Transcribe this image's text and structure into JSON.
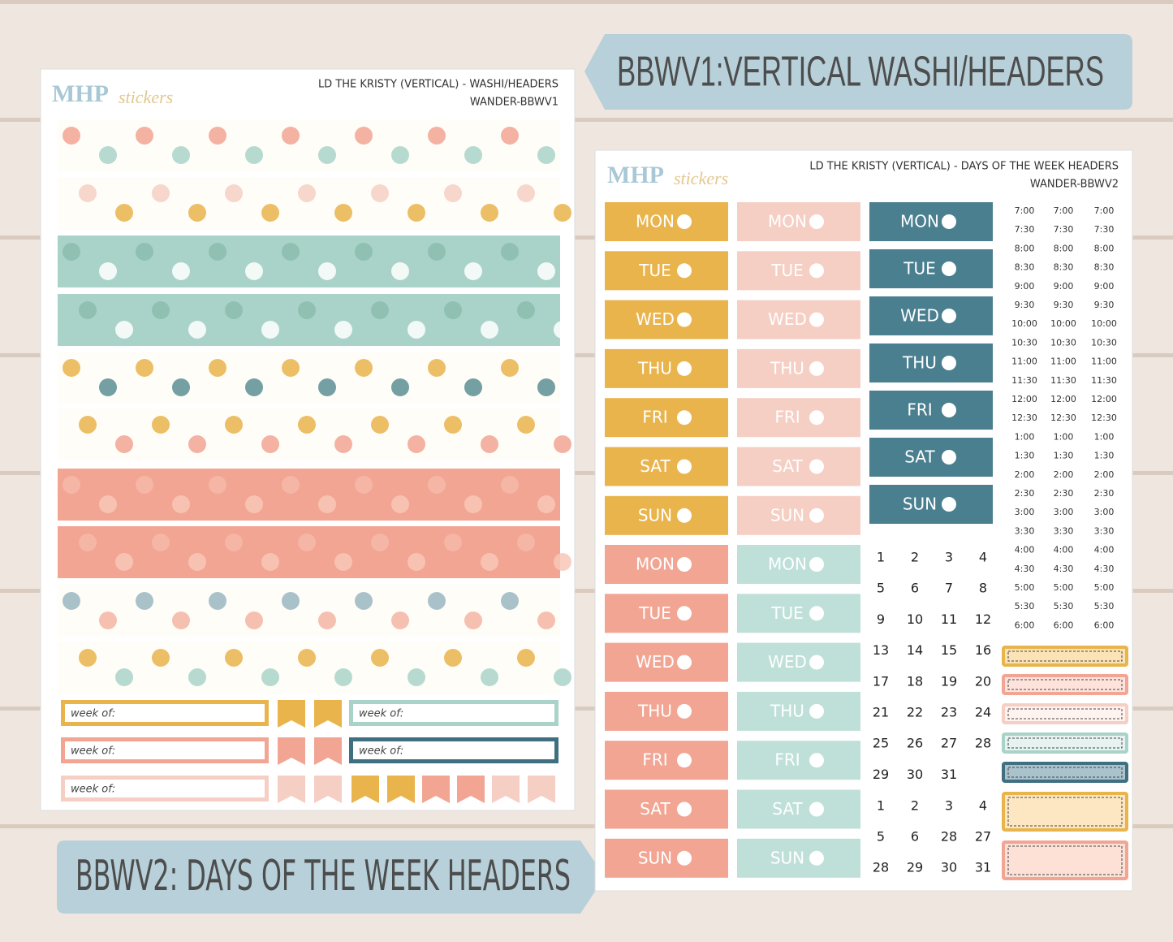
{
  "banners": {
    "top": "BBWV1:VERTICAL WASHI/HEADERS",
    "bottom": "BBWV2: DAYS OF THE WEEK HEADERS"
  },
  "sheet1": {
    "logo": {
      "brand": "MHP",
      "script": "stickers"
    },
    "title": "LD THE KRISTY (VERTICAL) - WASHI/HEADERS",
    "code": "WANDER-BBWV1",
    "week_label": "week of:"
  },
  "sheet2": {
    "logo": {
      "brand": "MHP",
      "script": "stickers"
    },
    "title": "LD THE KRISTY (VERTICAL) - DAYS OF THE WEEK HEADERS",
    "code": "WANDER-BBWV2",
    "days": [
      "MON",
      "TUE",
      "WED",
      "THU",
      "FRI",
      "SAT",
      "SUN"
    ],
    "times": [
      "7:00",
      "7:30",
      "8:00",
      "8:30",
      "9:00",
      "9:30",
      "10:00",
      "10:30",
      "11:00",
      "11:30",
      "12:00",
      "12:30",
      "1:00",
      "1:30",
      "2:00",
      "2:30",
      "3:00",
      "3:30",
      "4:00",
      "4:30",
      "5:00",
      "5:30",
      "6:00"
    ],
    "dates": [
      "1",
      "2",
      "3",
      "4",
      "5",
      "6",
      "7",
      "8",
      "9",
      "10",
      "11",
      "12",
      "13",
      "14",
      "15",
      "16",
      "17",
      "18",
      "19",
      "20",
      "21",
      "22",
      "23",
      "24",
      "25",
      "26",
      "27",
      "28",
      "29",
      "30",
      "31"
    ],
    "extra_dates": [
      "1",
      "2",
      "3",
      "4",
      "5",
      "6",
      "28",
      "27",
      "28",
      "29",
      "30",
      "31"
    ]
  }
}
